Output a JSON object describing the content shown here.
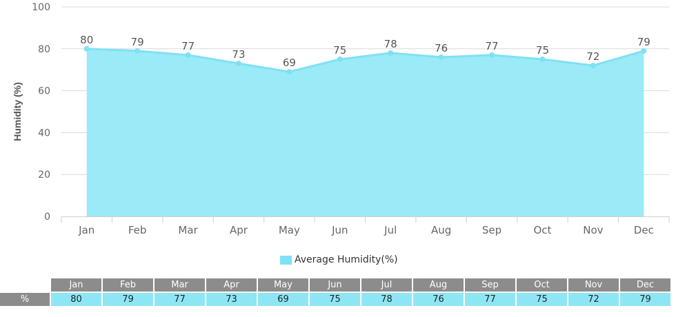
{
  "chart_data": {
    "type": "area",
    "title": "",
    "xlabel": "",
    "ylabel": "Humidity (%)",
    "ylim": [
      0,
      100
    ],
    "yticks": [
      0,
      20,
      40,
      60,
      80,
      100
    ],
    "grid": true,
    "legend_position": "bottom-center",
    "categories": [
      "Jan",
      "Feb",
      "Mar",
      "Apr",
      "May",
      "Jun",
      "Jul",
      "Aug",
      "Sep",
      "Oct",
      "Nov",
      "Dec"
    ],
    "series": [
      {
        "name": "Average Humidity(%)",
        "values": [
          80,
          79,
          77,
          73,
          69,
          75,
          78,
          76,
          77,
          75,
          72,
          79
        ],
        "fill_color": "#9beaf7",
        "line_color": "#7ee1f4"
      }
    ]
  },
  "table": {
    "row_label": "%"
  },
  "colors": {
    "grid": "#d9d9d9",
    "axis_text": "#666666",
    "table_header_bg": "#8c8c8c",
    "table_value_bg": "#8ee6f5"
  }
}
